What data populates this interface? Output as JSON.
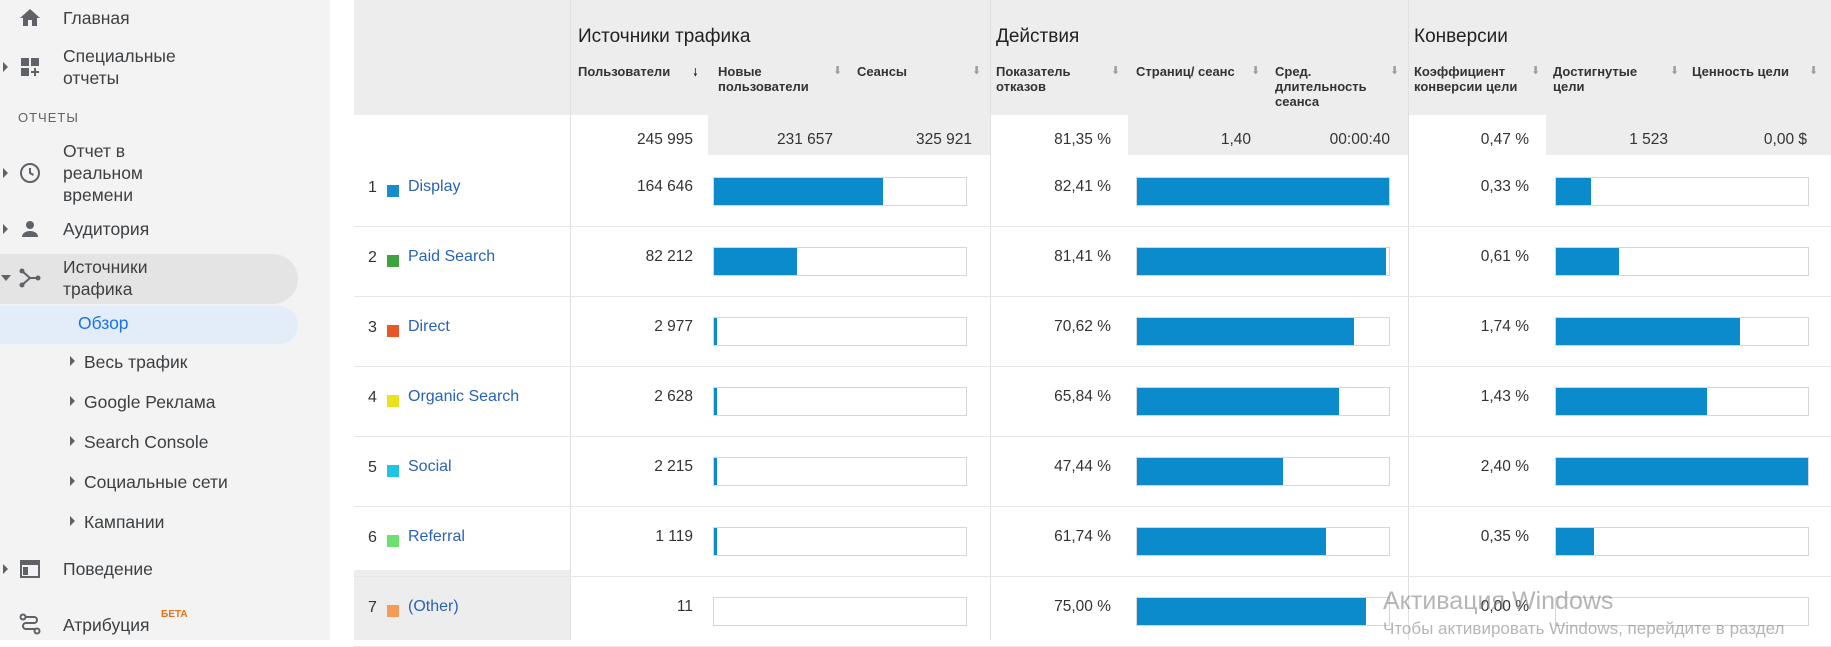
{
  "sidebar": {
    "items": [
      {
        "label": "Главная",
        "icon": "home-icon"
      },
      {
        "label": "Специальные отчеты",
        "icon": "dashboard-icon"
      },
      {
        "label": "Отчет в реальном времени",
        "icon": "clock-icon"
      },
      {
        "label": "Аудитория",
        "icon": "person-icon"
      },
      {
        "label": "Источники трафика",
        "icon": "acquisition-icon"
      },
      {
        "label": "Поведение",
        "icon": "behavior-icon"
      },
      {
        "label": "Атрибуция",
        "icon": "attribution-icon",
        "badge": "БЕТА"
      }
    ],
    "section_label": "ОТЧЕТЫ",
    "active_sub": "Обзор",
    "sub_items": [
      "Весь трафик",
      "Google Реклама",
      "Search Console",
      "Социальные сети",
      "Кампании"
    ]
  },
  "table": {
    "groups": [
      "Источники трафика",
      "Действия",
      "Конверсии"
    ],
    "columns": [
      {
        "label": "Пользователи",
        "sorted": true
      },
      {
        "label": "Новые пользователи"
      },
      {
        "label": "Сеансы"
      },
      {
        "label": "Показатель отказов"
      },
      {
        "label": "Страниц/ сеанс"
      },
      {
        "label": "Сред. длительность сеанса"
      },
      {
        "label": "Коэффициент конверсии цели"
      },
      {
        "label": "Достигнутые цели"
      },
      {
        "label": "Ценность цели"
      }
    ],
    "totals": [
      "245 995",
      "231 657",
      "325 921",
      "81,35 %",
      "1,40",
      "00:00:40",
      "0,47 %",
      "1 523",
      "0,00 $"
    ],
    "rows": [
      {
        "num": "1",
        "name": "Display",
        "color": "#1a8ccc",
        "users": "164 646",
        "users_frac": 0.67,
        "bounce": "82,41 %",
        "bounce_frac": 1.0,
        "conv": "0,33 %",
        "conv_frac": 0.14
      },
      {
        "num": "2",
        "name": "Paid Search",
        "color": "#3ea33e",
        "users": "82 212",
        "users_frac": 0.33,
        "bounce": "81,41 %",
        "bounce_frac": 0.99,
        "conv": "0,61 %",
        "conv_frac": 0.25
      },
      {
        "num": "3",
        "name": "Direct",
        "color": "#e8562a",
        "users": "2 977",
        "users_frac": 0.012,
        "bounce": "70,62 %",
        "bounce_frac": 0.86,
        "conv": "1,74 %",
        "conv_frac": 0.73
      },
      {
        "num": "4",
        "name": "Organic Search",
        "color": "#e9e21c",
        "users": "2 628",
        "users_frac": 0.011,
        "bounce": "65,84 %",
        "bounce_frac": 0.8,
        "conv": "1,43 %",
        "conv_frac": 0.6
      },
      {
        "num": "5",
        "name": "Social",
        "color": "#22c4e6",
        "users": "2 215",
        "users_frac": 0.009,
        "bounce": "47,44 %",
        "bounce_frac": 0.58,
        "conv": "2,40 %",
        "conv_frac": 1.0
      },
      {
        "num": "6",
        "name": "Referral",
        "color": "#6de06d",
        "users": "1 119",
        "users_frac": 0.005,
        "bounce": "61,74 %",
        "bounce_frac": 0.75,
        "conv": "0,35 %",
        "conv_frac": 0.15
      },
      {
        "num": "7",
        "name": "(Other)",
        "color": "#f59b5a",
        "users": "11",
        "users_frac": 0.0,
        "bounce": "75,00 %",
        "bounce_frac": 0.91,
        "conv": "0,00 %",
        "conv_frac": 0.0
      }
    ],
    "bar_color": "#0b8bcb"
  },
  "watermark": {
    "line1": "Активация Windows",
    "line2": "Чтобы активировать Windows, перейдите в раздел"
  }
}
